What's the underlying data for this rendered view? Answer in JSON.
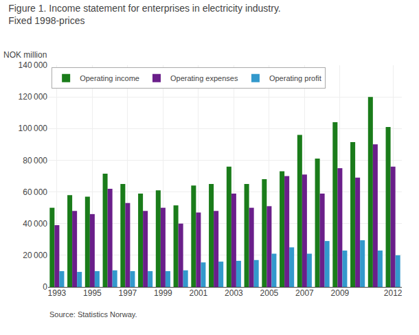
{
  "chart_data": {
    "type": "bar",
    "title": "Figure 1. Income statement for enterprises in electricity industry.",
    "subtitle": "Fixed 1998-prices",
    "y_label": "NOK million",
    "annotations": [
      "Source: Statistics Norway."
    ],
    "categories": [
      "1993",
      null,
      "1995",
      null,
      "1997",
      null,
      "1999",
      null,
      "2001",
      null,
      "2003",
      null,
      "2005",
      null,
      "2007",
      null,
      "2009",
      null,
      null,
      "2012"
    ],
    "series": [
      {
        "name": "Operating income",
        "color": "#1a7c1a",
        "values": [
          50000,
          58000,
          57000,
          71500,
          65000,
          59000,
          61000,
          51500,
          64000,
          65000,
          76000,
          65000,
          68000,
          73000,
          96000,
          81000,
          104000,
          91500,
          120000,
          101000
        ]
      },
      {
        "name": "Operating expenses",
        "color": "#6a1f8a",
        "values": [
          39000,
          48000,
          46000,
          62000,
          53000,
          48000,
          50000,
          40000,
          47000,
          48000,
          59000,
          50000,
          51000,
          70000,
          71000,
          59000,
          75000,
          69000,
          90000,
          76000
        ]
      },
      {
        "name": "Operating profit",
        "color": "#3399cc",
        "values": [
          10000,
          9500,
          10000,
          10500,
          10000,
          10000,
          10000,
          10500,
          15500,
          16000,
          16500,
          17000,
          21000,
          25000,
          21000,
          29000,
          23000,
          29500,
          23000,
          20000
        ]
      }
    ],
    "ylim": [
      0,
      140000
    ],
    "yticks": [
      0,
      {
        "value": 20000,
        "label": "20 000"
      },
      {
        "value": 40000,
        "label": "40 000"
      },
      {
        "value": 60000,
        "label": "60 000"
      },
      {
        "value": 80000,
        "label": "80 000"
      },
      {
        "value": 100000,
        "label": "100 000"
      },
      {
        "value": 120000,
        "label": "120 000"
      },
      {
        "value": 140000,
        "label": "140 000"
      }
    ],
    "grid": true,
    "legend": "upper left"
  }
}
